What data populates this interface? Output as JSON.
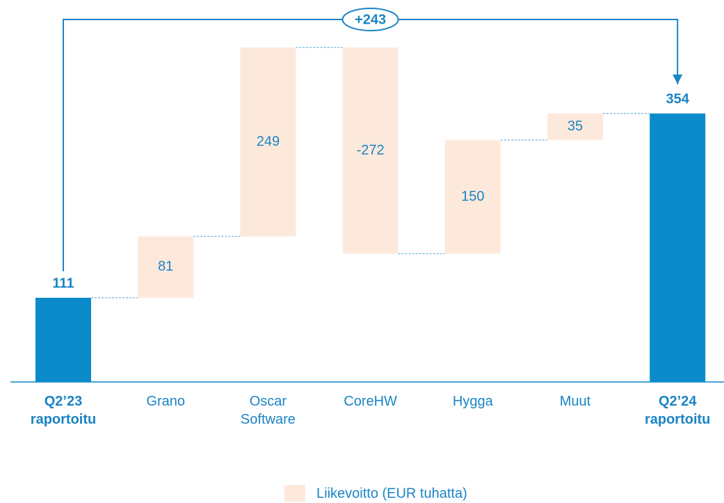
{
  "chart_data": {
    "type": "waterfall",
    "categories": [
      "Q2’23 raportoitu",
      "Grano",
      "Oscar Software",
      "CoreHW",
      "Hygga",
      "Muut",
      "Q2’24 raportoitu"
    ],
    "values": [
      111,
      81,
      249,
      -272,
      150,
      35,
      354
    ],
    "is_total": [
      true,
      false,
      false,
      false,
      false,
      false,
      true
    ],
    "color": "#fde9dc",
    "total_color": "#0b8bc9",
    "annotation": "+243",
    "legend": "Liikevoitto (EUR tuhatta)"
  }
}
